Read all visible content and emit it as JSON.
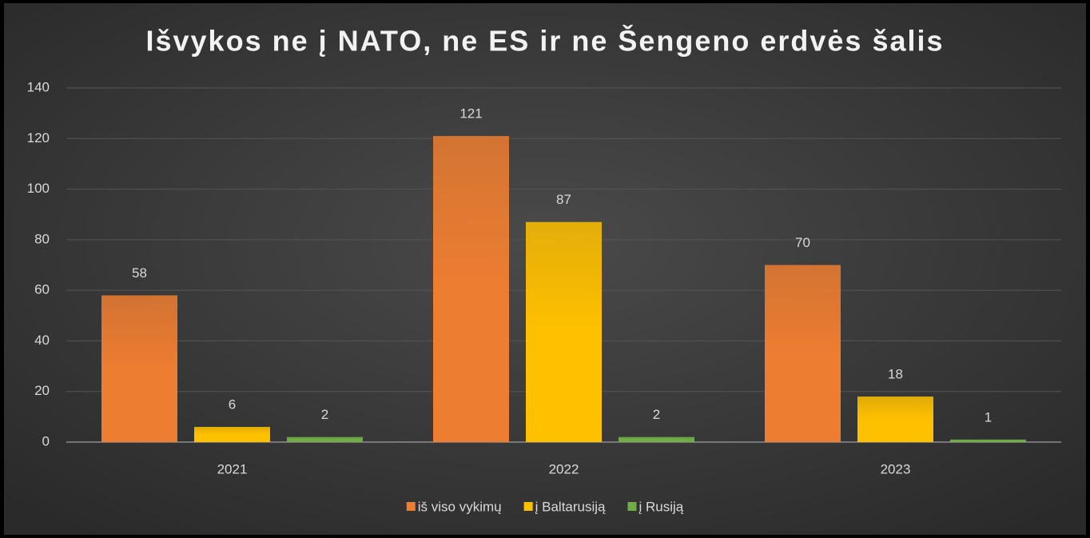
{
  "chart_data": {
    "type": "bar",
    "title": "Išvykos ne į NATO, ne ES ir ne Šengeno erdvės šalis",
    "categories": [
      "2021",
      "2022",
      "2023"
    ],
    "series": [
      {
        "name": "iš viso vykimų",
        "color": "#ed7d31",
        "values": [
          58,
          121,
          70
        ]
      },
      {
        "name": "į Baltarusiją",
        "color": "#ffc000",
        "values": [
          6,
          87,
          18
        ]
      },
      {
        "name": "į Rusiją",
        "color": "#70ad47",
        "values": [
          2,
          2,
          1
        ]
      }
    ],
    "ylim": [
      0,
      140
    ],
    "yticks": [
      0,
      20,
      40,
      60,
      80,
      100,
      120,
      140
    ],
    "grid": true,
    "legend": "bottom"
  }
}
